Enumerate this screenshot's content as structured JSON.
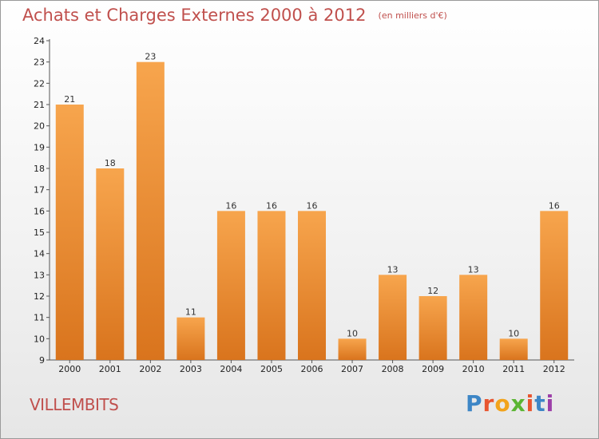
{
  "header": {
    "title": "Achats et Charges Externes 2000 à 2012",
    "unit": "(en milliers d'€)"
  },
  "commune": "VILLEMBITS",
  "logo": {
    "letters": [
      "P",
      "r",
      "o",
      "x",
      "i",
      "t",
      "i"
    ],
    "colors": [
      "#3d86c6",
      "#e8552f",
      "#f2a31b",
      "#5bb533",
      "#e8552f",
      "#3d86c6",
      "#9c3fa8"
    ]
  },
  "colors": {
    "bar_top": "#f7a54d",
    "bar_bottom": "#d9741d",
    "title": "#c0504d"
  },
  "chart_data": {
    "type": "bar",
    "categories": [
      "2000",
      "2001",
      "2002",
      "2003",
      "2004",
      "2005",
      "2006",
      "2007",
      "2008",
      "2009",
      "2010",
      "2011",
      "2012"
    ],
    "values": [
      21,
      18,
      23,
      11,
      16,
      16,
      16,
      10,
      13,
      12,
      13,
      10,
      16
    ],
    "ylim": [
      9,
      24
    ],
    "yticks": [
      9,
      10,
      11,
      12,
      13,
      14,
      15,
      16,
      17,
      18,
      19,
      20,
      21,
      22,
      23,
      24
    ],
    "grid": false,
    "title": "Achats et Charges Externes 2000 à 2012",
    "xlabel": "",
    "ylabel": ""
  }
}
